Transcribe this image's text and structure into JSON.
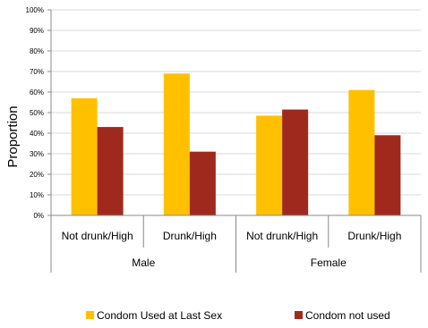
{
  "chart_data": {
    "type": "bar",
    "ylabel": "Proportion",
    "ylim": [
      0,
      100
    ],
    "y_ticks": [
      "0%",
      "10%",
      "20%",
      "30%",
      "40%",
      "50%",
      "60%",
      "70%",
      "80%",
      "90%",
      "100%"
    ],
    "categories": [
      "Not drunk/High",
      "Drunk/High",
      "Not drunk/High",
      "Drunk/High"
    ],
    "groups": [
      {
        "label": "Male",
        "span": [
          0,
          1
        ]
      },
      {
        "label": "Female",
        "span": [
          2,
          3
        ]
      }
    ],
    "series": [
      {
        "name": "Condom Used at Last Sex",
        "color": "#FFC000",
        "values": [
          57,
          69,
          48.5,
          61
        ]
      },
      {
        "name": "Condom not used",
        "color": "#A0291E",
        "values": [
          43,
          31,
          51.5,
          39
        ]
      }
    ],
    "grid": true,
    "legend_position": "bottom"
  }
}
